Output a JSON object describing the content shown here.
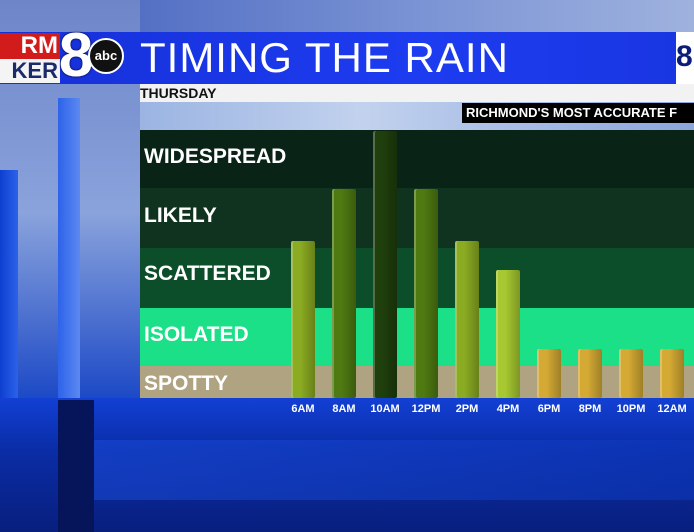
{
  "header": {
    "logo_top": "RM",
    "logo_bottom": "KER",
    "logo_number": "8",
    "logo_network": "abc",
    "title": "TIMING THE RAIN",
    "corner_logo": "8",
    "subtitle": "THURSDAY",
    "tagline": "RICHMOND'S MOST ACCURATE F"
  },
  "chart_data": {
    "type": "bar",
    "title": "TIMING THE RAIN",
    "subtitle": "THURSDAY",
    "categories": [
      "6AM",
      "8AM",
      "10AM",
      "12PM",
      "2PM",
      "4PM",
      "6PM",
      "8PM",
      "10PM",
      "12AM"
    ],
    "levels": [
      "SPOTTY",
      "ISOLATED",
      "SCATTERED",
      "LIKELY",
      "WIDESPREAD"
    ],
    "values": [
      2.7,
      3.6,
      4.6,
      3.6,
      2.7,
      2.2,
      0.85,
      0.85,
      0.85,
      0.85
    ],
    "bar_colors": [
      "#8bab22",
      "#4f7a12",
      "#1f3f0c",
      "#4f7a12",
      "#8bab22",
      "#a7c830",
      "#d4aa34",
      "#d4aa34",
      "#d4aa34",
      "#d4aa34"
    ],
    "ylim": [
      0,
      5
    ],
    "grid": false,
    "band_colors": {
      "SPOTTY": "#b0a382",
      "ISOLATED": "#1be088",
      "SCATTERED": "#0c4d2a",
      "LIKELY": "#10331f",
      "WIDESPREAD": "#0a2317"
    }
  }
}
